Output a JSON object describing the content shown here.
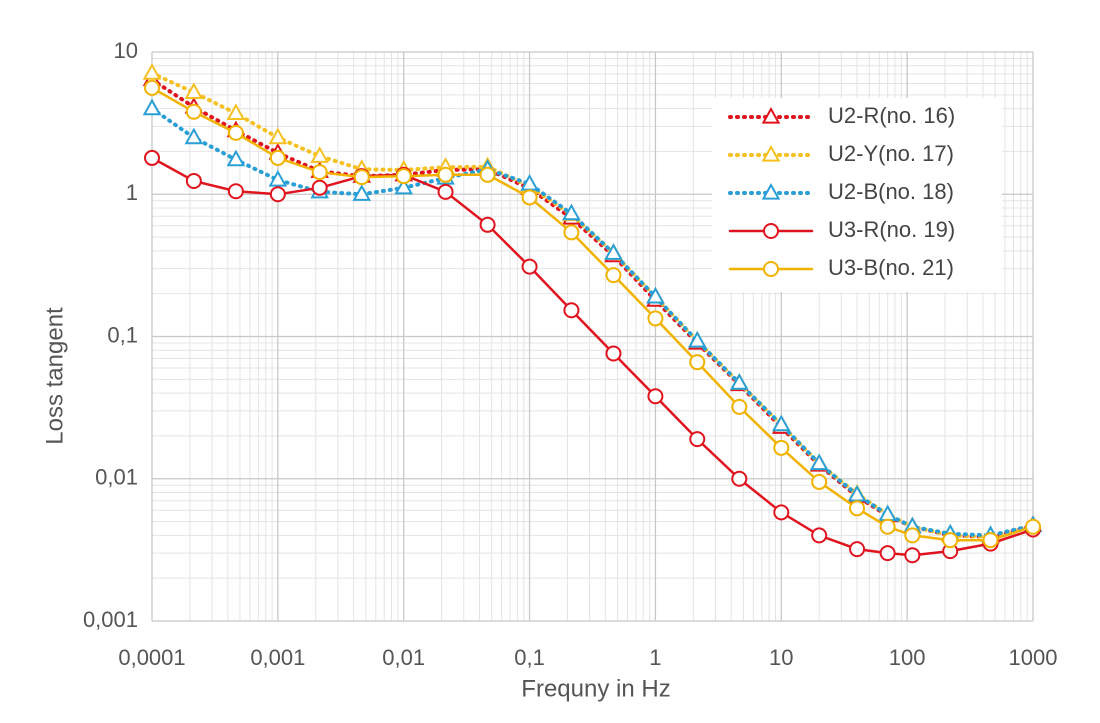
{
  "chart_data": {
    "type": "line",
    "x_label": "Frequny in Hz",
    "y_label": "Loss tangent",
    "xscale": "log",
    "yscale": "log",
    "grid": true,
    "minor_grid": true,
    "legend_position": "upper right",
    "x": [
      0.0001,
      0.000215,
      0.000464,
      0.001,
      0.00215,
      0.00464,
      0.01,
      0.0215,
      0.0464,
      0.1,
      0.215,
      0.464,
      1,
      2.15,
      4.64,
      10,
      20,
      40,
      70,
      110,
      220,
      460,
      1000
    ],
    "xlim": [
      0.0001,
      1000
    ],
    "xticks": [
      {
        "value": 0.0001,
        "label": "0,0001"
      },
      {
        "value": 0.001,
        "label": "0,001"
      },
      {
        "value": 0.01,
        "label": "0,01"
      },
      {
        "value": 0.1,
        "label": "0,1"
      },
      1,
      10,
      100,
      1000
    ],
    "ylim": [
      0.001,
      10
    ],
    "yticks": [
      {
        "value": 0.001,
        "label": "0,001"
      },
      {
        "value": 0.01,
        "label": "0,01"
      },
      {
        "value": 0.1,
        "label": "0,1"
      },
      1,
      10
    ],
    "series": [
      {
        "name": "U2-R(no. 16)",
        "color": "#e0141e",
        "line_style": "dotted",
        "marker": "triangle",
        "values": [
          6.4,
          4.1,
          2.8,
          1.95,
          1.45,
          1.34,
          1.37,
          1.48,
          1.5,
          1.1,
          0.68,
          0.37,
          0.18,
          0.09,
          0.046,
          0.023,
          0.0125,
          0.0075,
          0.0055,
          0.0046,
          0.004,
          0.0039,
          0.0047
        ]
      },
      {
        "name": "U2-Y(no. 17)",
        "color": "#f5c020",
        "line_style": "dotted",
        "marker": "triangle",
        "values": [
          7.1,
          5.2,
          3.7,
          2.5,
          1.85,
          1.5,
          1.48,
          1.55,
          1.56,
          1.14,
          0.72,
          0.385,
          0.19,
          0.093,
          0.047,
          0.024,
          0.0128,
          0.0078,
          0.0056,
          0.0046,
          0.004,
          0.0039,
          0.0047
        ]
      },
      {
        "name": "U2-B(no. 18)",
        "color": "#2a9fd6",
        "line_style": "dotted",
        "marker": "triangle",
        "values": [
          4.0,
          2.5,
          1.75,
          1.26,
          1.04,
          1.0,
          1.11,
          1.3,
          1.5,
          1.18,
          0.73,
          0.385,
          0.19,
          0.093,
          0.047,
          0.024,
          0.0128,
          0.0077,
          0.0056,
          0.0046,
          0.0041,
          0.004,
          0.0047
        ]
      },
      {
        "name": "U3-R(no. 19)",
        "color": "#e0141e",
        "line_style": "solid",
        "marker": "circle",
        "values": [
          1.8,
          1.24,
          1.05,
          1.0,
          1.11,
          1.34,
          1.37,
          1.04,
          0.61,
          0.31,
          0.153,
          0.076,
          0.038,
          0.019,
          0.01,
          0.0058,
          0.004,
          0.0032,
          0.003,
          0.0029,
          0.0031,
          0.0035,
          0.0044
        ]
      },
      {
        "name": "U3-B(no. 21)",
        "color": "#f2b300",
        "line_style": "solid",
        "marker": "circle",
        "values": [
          5.6,
          3.8,
          2.7,
          1.8,
          1.43,
          1.32,
          1.34,
          1.37,
          1.37,
          0.95,
          0.54,
          0.27,
          0.134,
          0.066,
          0.032,
          0.0165,
          0.0095,
          0.0062,
          0.0046,
          0.004,
          0.0037,
          0.0037,
          0.0046
        ]
      }
    ]
  }
}
